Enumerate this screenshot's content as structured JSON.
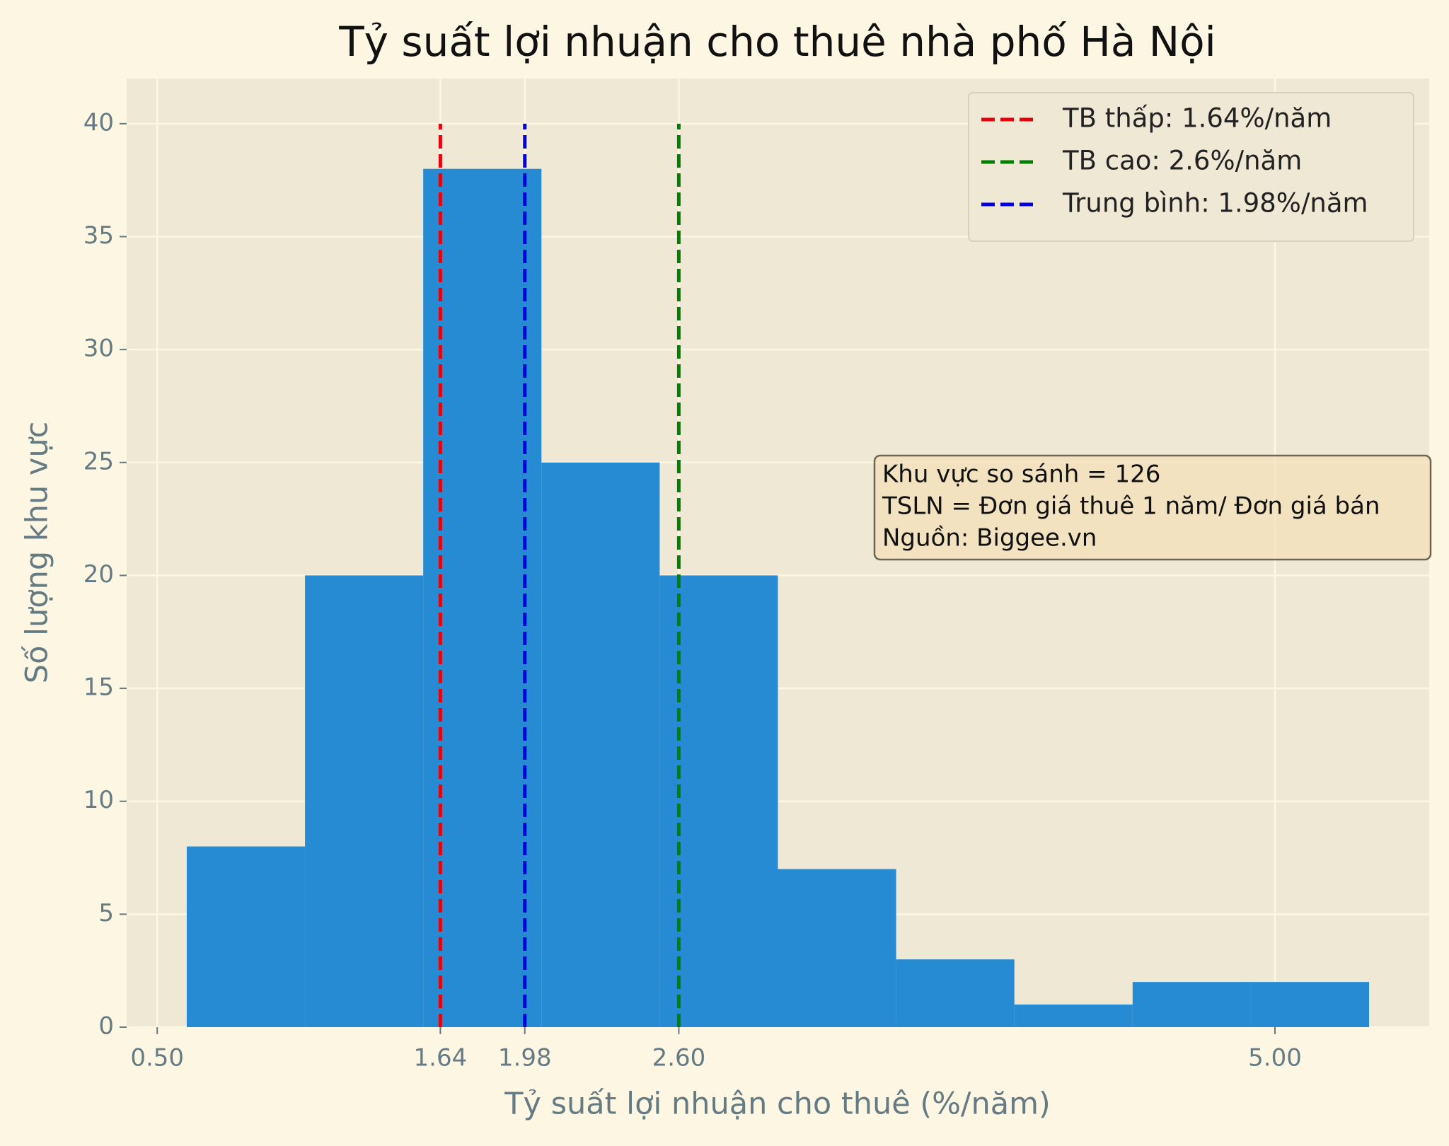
{
  "chart_data": {
    "type": "histogram",
    "title": "Tỷ suất lợi nhuận cho thuê nhà phố Hà Nội",
    "x_label": "Tỷ suất lợi nhuận cho thuê (%/năm)",
    "y_label": "Số lượng khu vực",
    "bins": [
      0.619,
      1.095,
      1.571,
      2.047,
      2.523,
      2.999,
      3.475,
      3.951,
      4.427,
      4.903,
      5.379
    ],
    "values": [
      8,
      20,
      38,
      25,
      20,
      7,
      3,
      1,
      2,
      2
    ],
    "color": "#268bd2",
    "xlim": [
      0.377,
      5.621
    ],
    "ylim": [
      0,
      42
    ],
    "xticks": [
      {
        "value": 0.5,
        "label": "0.50"
      },
      {
        "value": 1.64,
        "label": "1.64"
      },
      {
        "value": 1.98,
        "label": "1.98"
      },
      {
        "value": 2.6,
        "label": "2.60"
      },
      {
        "value": 5.0,
        "label": "5.00"
      }
    ],
    "yticks": [
      0,
      5,
      10,
      15,
      20,
      25,
      30,
      35,
      40
    ],
    "grid": true,
    "vlines": [
      {
        "name": "TB thấp: 1.64%/năm",
        "color": "#e8000b",
        "x": 1.64,
        "ymax": 40
      },
      {
        "name": "TB cao: 2.6%/năm",
        "color": "#008000",
        "x": 2.6,
        "ymax": 40
      },
      {
        "name": "Trung bình: 1.98%/năm",
        "color": "#0000e0",
        "x": 1.98,
        "ymax": 40
      }
    ],
    "legend": "upper right",
    "annotation": [
      "Khu vực so sánh = 126",
      "TSLN = Đơn giá thuê 1 năm/ Đơn giá bán",
      "Nguồn: Biggee.vn"
    ]
  }
}
